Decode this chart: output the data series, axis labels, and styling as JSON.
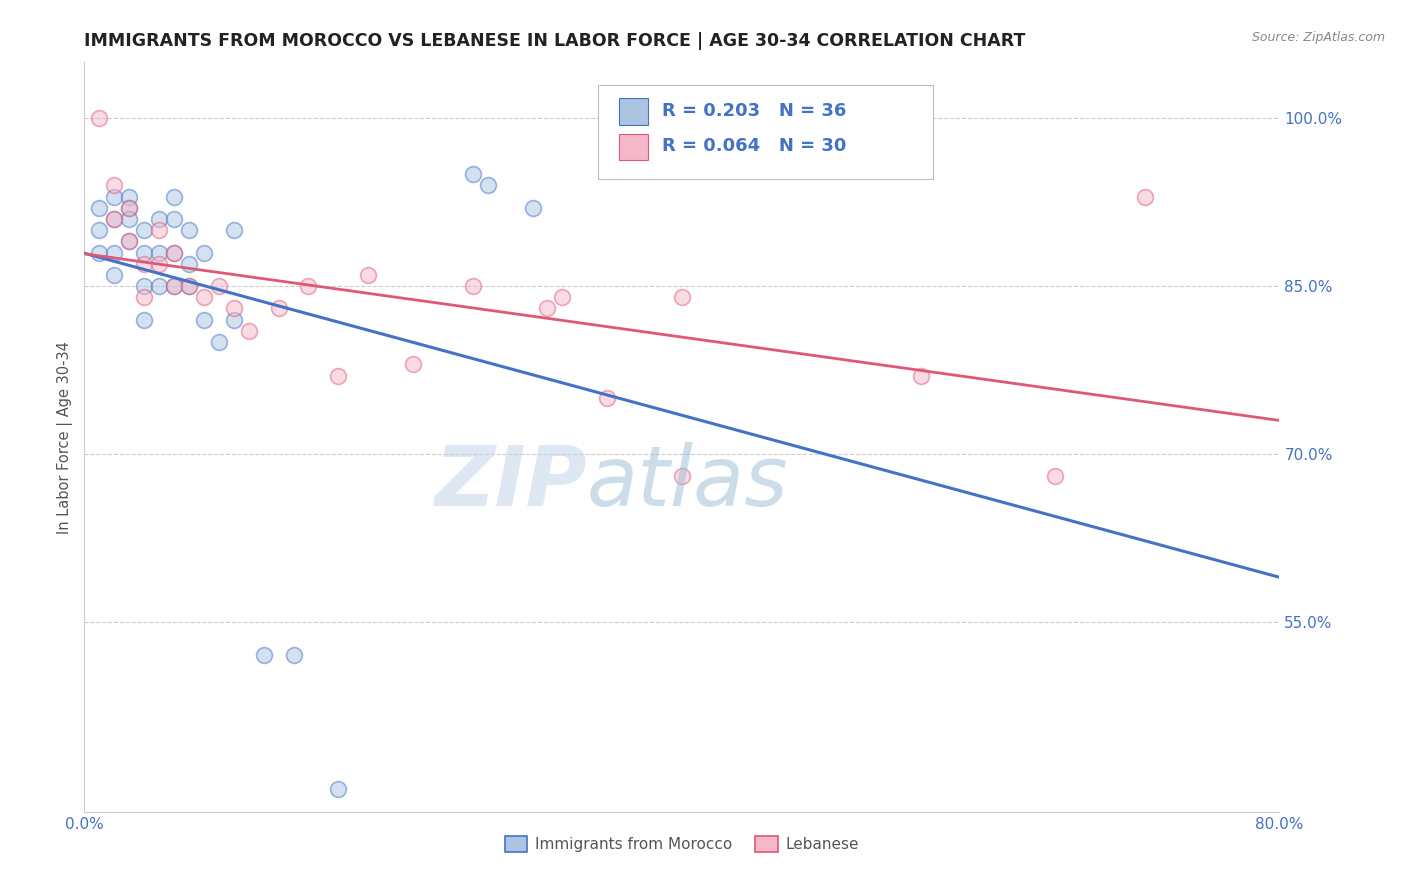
{
  "title": "IMMIGRANTS FROM MOROCCO VS LEBANESE IN LABOR FORCE | AGE 30-34 CORRELATION CHART",
  "source": "Source: ZipAtlas.com",
  "ylabel": "In Labor Force | Age 30-34",
  "xlim": [
    0.0,
    0.8
  ],
  "ylim": [
    0.38,
    1.05
  ],
  "morocco_R": 0.203,
  "morocco_N": 36,
  "lebanese_R": 0.064,
  "lebanese_N": 30,
  "morocco_color": "#aac4e2",
  "lebanese_color": "#f5b8cb",
  "morocco_line_color": "#4472c4",
  "lebanese_line_color": "#e05878",
  "legend_label_morocco": "Immigrants from Morocco",
  "legend_label_lebanese": "Lebanese",
  "morocco_x": [
    0.01,
    0.01,
    0.01,
    0.02,
    0.02,
    0.02,
    0.02,
    0.03,
    0.03,
    0.03,
    0.03,
    0.04,
    0.04,
    0.04,
    0.04,
    0.05,
    0.05,
    0.05,
    0.06,
    0.06,
    0.06,
    0.06,
    0.07,
    0.07,
    0.07,
    0.08,
    0.08,
    0.09,
    0.1,
    0.1,
    0.12,
    0.14,
    0.17,
    0.26,
    0.27,
    0.3
  ],
  "morocco_y": [
    0.92,
    0.9,
    0.88,
    0.93,
    0.91,
    0.88,
    0.86,
    0.93,
    0.92,
    0.91,
    0.89,
    0.9,
    0.88,
    0.85,
    0.82,
    0.91,
    0.88,
    0.85,
    0.93,
    0.91,
    0.88,
    0.85,
    0.9,
    0.87,
    0.85,
    0.88,
    0.82,
    0.8,
    0.9,
    0.82,
    0.52,
    0.52,
    0.4,
    0.95,
    0.94,
    0.92
  ],
  "lebanese_x": [
    0.01,
    0.02,
    0.02,
    0.03,
    0.03,
    0.04,
    0.04,
    0.05,
    0.05,
    0.06,
    0.06,
    0.07,
    0.08,
    0.09,
    0.1,
    0.11,
    0.13,
    0.15,
    0.17,
    0.19,
    0.22,
    0.26,
    0.31,
    0.32,
    0.35,
    0.4,
    0.4,
    0.56,
    0.65,
    0.71
  ],
  "lebanese_y": [
    1.0,
    0.94,
    0.91,
    0.92,
    0.89,
    0.87,
    0.84,
    0.9,
    0.87,
    0.88,
    0.85,
    0.85,
    0.84,
    0.85,
    0.83,
    0.81,
    0.83,
    0.85,
    0.77,
    0.86,
    0.78,
    0.85,
    0.83,
    0.84,
    0.75,
    0.84,
    0.68,
    0.77,
    0.68,
    0.93
  ],
  "watermark_zip": "ZIP",
  "watermark_atlas": "atlas",
  "background_color": "#ffffff",
  "grid_color": "#cccccc",
  "title_color": "#222222",
  "title_fontsize": 12.5,
  "axis_label_color": "#555555",
  "tick_color": "#4472c4",
  "legend_R_color": "#4472c4",
  "dot_size": 130,
  "dot_alpha": 0.5
}
